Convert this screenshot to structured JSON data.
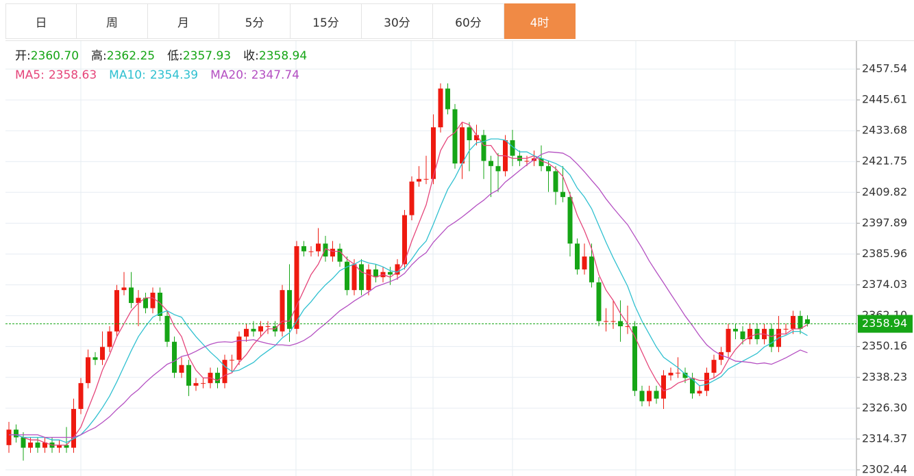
{
  "tabs": [
    "日",
    "周",
    "月",
    "5分",
    "15分",
    "30分",
    "60分",
    "4时"
  ],
  "active_tab": 7,
  "chart_data": {
    "type": "candlestick",
    "ohlc_legend": [
      {
        "label": "开:",
        "text": "2360.70"
      },
      {
        "label": "高:",
        "text": "2362.25"
      },
      {
        "label": "低:",
        "text": "2357.93"
      },
      {
        "label": "收:",
        "text": "2358.94"
      }
    ],
    "up_color": "#ee1a10",
    "down_color": "#16a516",
    "legend_value_color": "#16a516",
    "last_color": "#16a516",
    "ylim": [
      2300.05,
      2468.39
    ],
    "yticks": [
      2457.54,
      2445.61,
      2433.68,
      2421.75,
      2409.82,
      2397.89,
      2385.96,
      2374.03,
      {
        "value": 2362.1,
        "label": "2362.10"
      },
      2350.16,
      2338.23,
      {
        "value": 2326.3,
        "label": "2326.30"
      },
      2314.37,
      2302.44
    ],
    "grid": true,
    "open": [
      2312,
      2318,
      2315,
      2311,
      2313,
      2311,
      2313,
      2311,
      2312,
      2311,
      2326,
      2336,
      2346,
      2345,
      2350,
      2356,
      2372,
      2373,
      2367,
      2369,
      2365,
      2371,
      2362,
      2352,
      2340,
      2343,
      2335,
      2336,
      2336,
      2340,
      2336,
      2345,
      2345,
      2354,
      2357,
      2356,
      2358,
      2358,
      2356,
      2372,
      2357,
      2389,
      2387,
      2387,
      2390,
      2385,
      2388,
      2383,
      2372,
      2382,
      2372,
      2380,
      2377,
      2379,
      2378,
      2382,
      2401,
      2414,
      2415,
      2415,
      2435,
      2450,
      2442,
      2421,
      2435,
      2430,
      2432,
      2422,
      2420,
      2418,
      2430,
      2424,
      2422,
      2422,
      2423,
      2420,
      2418,
      2410,
      2408,
      2390,
      2380,
      2385,
      2375,
      2360,
      2360,
      2360,
      2358,
      2358,
      2333,
      2329,
      2333,
      2330,
      2339,
      2340,
      2340,
      2338,
      2332,
      2333,
      2340,
      2345,
      2348,
      2357,
      2356,
      2353,
      2357,
      2353,
      2357,
      2350,
      2357,
      2357,
      2362,
      2360.7
    ],
    "high": [
      2321,
      2320,
      2317,
      2315,
      2315,
      2315,
      2315,
      2314,
      2319,
      2330,
      2338,
      2349,
      2348,
      2356,
      2358,
      2374,
      2379,
      2379,
      2372,
      2371,
      2373,
      2373,
      2364,
      2354,
      2346,
      2345,
      2338,
      2338,
      2342,
      2342,
      2347,
      2347,
      2356,
      2359,
      2360,
      2360,
      2360,
      2360,
      2374,
      2382,
      2391,
      2391,
      2389,
      2396,
      2393,
      2391,
      2390,
      2385,
      2384,
      2384,
      2382,
      2382,
      2381,
      2381,
      2384,
      2403,
      2416,
      2420,
      2424,
      2440,
      2452,
      2452,
      2444,
      2437,
      2437,
      2436,
      2434,
      2424,
      2425,
      2432,
      2434,
      2426,
      2424,
      2426,
      2428,
      2422,
      2420,
      2420,
      2410,
      2392,
      2390,
      2390,
      2377,
      2365,
      2368,
      2368,
      2366,
      2360,
      2335,
      2335,
      2335,
      2341,
      2342,
      2346,
      2342,
      2340,
      2335,
      2342,
      2347,
      2350,
      2359,
      2359,
      2358,
      2359,
      2359,
      2359,
      2359,
      2362,
      2359,
      2364,
      2364,
      2362.25
    ],
    "low": [
      2309,
      2313,
      2306,
      2309,
      2309,
      2309,
      2309,
      2309,
      2309,
      2309,
      2324,
      2334,
      2343,
      2343,
      2348,
      2354,
      2370,
      2365,
      2358,
      2363,
      2363,
      2360,
      2350,
      2338,
      2338,
      2331,
      2333,
      2334,
      2334,
      2334,
      2334,
      2340,
      2343,
      2352,
      2354,
      2354,
      2355,
      2354,
      2354,
      2352,
      2355,
      2385,
      2385,
      2385,
      2383,
      2383,
      2381,
      2370,
      2370,
      2370,
      2370,
      2375,
      2375,
      2374,
      2376,
      2380,
      2399,
      2412,
      2413,
      2413,
      2433,
      2440,
      2419,
      2415,
      2418,
      2428,
      2415,
      2408,
      2410,
      2416,
      2420,
      2420,
      2420,
      2420,
      2418,
      2410,
      2405,
      2406,
      2385,
      2378,
      2378,
      2373,
      2358,
      2356,
      2357,
      2352,
      2355,
      2331,
      2327,
      2327,
      2328,
      2326,
      2337,
      2338,
      2336,
      2330,
      2331,
      2331,
      2338,
      2343,
      2346,
      2353,
      2351,
      2351,
      2351,
      2351,
      2348,
      2348,
      2355,
      2355,
      2355,
      2357.93
    ],
    "close": [
      2318,
      2315,
      2311,
      2313,
      2311,
      2313,
      2311,
      2312,
      2311,
      2326,
      2336,
      2346,
      2345,
      2350,
      2356,
      2372,
      2373,
      2367,
      2369,
      2365,
      2371,
      2362,
      2352,
      2340,
      2343,
      2335,
      2336,
      2336,
      2340,
      2336,
      2345,
      2345,
      2354,
      2357,
      2356,
      2358,
      2358,
      2356,
      2372,
      2357,
      2389,
      2387,
      2387,
      2390,
      2385,
      2388,
      2383,
      2372,
      2382,
      2372,
      2380,
      2377,
      2379,
      2378,
      2382,
      2401,
      2414,
      2415,
      2415,
      2435,
      2450,
      2442,
      2421,
      2435,
      2430,
      2432,
      2422,
      2420,
      2418,
      2430,
      2424,
      2422,
      2422,
      2423,
      2420,
      2418,
      2410,
      2408,
      2390,
      2380,
      2385,
      2375,
      2360,
      2360,
      2360,
      2358,
      2358,
      2333,
      2329,
      2333,
      2330,
      2339,
      2340,
      2340,
      2338,
      2332,
      2333,
      2340,
      2345,
      2348,
      2357,
      2356,
      2353,
      2357,
      2353,
      2357,
      2350,
      2357,
      2357,
      2362,
      2357,
      2358.94
    ],
    "ma": [
      {
        "label": "MA5:",
        "text": "2358.63",
        "color": "#e5457a",
        "values": [
          2316,
          2316,
          2315,
          2314,
          2314,
          2313,
          2312,
          2312,
          2312,
          2315,
          2319,
          2326,
          2333,
          2341,
          2347,
          2354,
          2359,
          2364,
          2367,
          2369,
          2369,
          2367,
          2364,
          2358,
          2354,
          2346,
          2341,
          2338,
          2338,
          2337,
          2339,
          2340,
          2344,
          2347,
          2351,
          2354,
          2357,
          2357,
          2360,
          2360,
          2366,
          2372,
          2378,
          2382,
          2388,
          2387,
          2387,
          2384,
          2382,
          2379,
          2378,
          2377,
          2378,
          2377,
          2379,
          2383,
          2391,
          2398,
          2405,
          2416,
          2426,
          2431,
          2433,
          2437,
          2436,
          2432,
          2428,
          2428,
          2424,
          2424,
          2423,
          2423,
          2423,
          2424,
          2422,
          2421,
          2419,
          2416,
          2409,
          2401,
          2395,
          2388,
          2378,
          2372,
          2368,
          2363,
          2359,
          2354,
          2348,
          2342,
          2337,
          2333,
          2334,
          2336,
          2337,
          2338,
          2337,
          2337,
          2338,
          2340,
          2345,
          2349,
          2352,
          2354,
          2355,
          2355,
          2354,
          2355,
          2355,
          2357,
          2357,
          2358.63
        ]
      },
      {
        "label": "MA10:",
        "text": "2354.39",
        "color": "#2fc0d0",
        "values": [
          2316,
          2316,
          2315,
          2315,
          2315,
          2315,
          2314,
          2314,
          2313,
          2314.5,
          2316,
          2319,
          2322.5,
          2326.5,
          2331,
          2336.5,
          2342.5,
          2348.5,
          2354,
          2358,
          2361.5,
          2363,
          2364,
          2362.5,
          2361.5,
          2357.5,
          2354,
          2351,
          2348,
          2345.5,
          2342.5,
          2340.5,
          2341,
          2342.5,
          2344,
          2346.5,
          2348.5,
          2350.5,
          2353.5,
          2355.5,
          2360,
          2364.5,
          2367.5,
          2371,
          2374,
          2376.5,
          2379.5,
          2381,
          2382,
          2383.5,
          2382.5,
          2382,
          2381,
          2379.5,
          2379,
          2380.5,
          2384,
          2388,
          2391,
          2397.5,
          2404.5,
          2411,
          2415.5,
          2421,
          2426,
          2429,
          2429.5,
          2430.5,
          2430.5,
          2430,
          2427.5,
          2425.5,
          2425.5,
          2424,
          2423,
          2422,
          2421,
          2419.5,
          2416.5,
          2411.5,
          2408,
          2403.5,
          2397,
          2390.5,
          2384.5,
          2379,
          2373.5,
          2366,
          2360,
          2355,
          2350,
          2346,
          2344,
          2342,
          2339.5,
          2337.5,
          2335,
          2335.5,
          2337,
          2338.5,
          2341.5,
          2343,
          2344.5,
          2346,
          2347.5,
          2350,
          2351.5,
          2353.5,
          2354.5,
          2356,
          2356,
          2354.39
        ]
      },
      {
        "label": "MA20:",
        "text": "2347.74",
        "color": "#b44fc2",
        "values": [
          2316,
          2316,
          2316,
          2316,
          2316,
          2315,
          2315,
          2315,
          2315,
          2315,
          2316,
          2317.5,
          2318.8,
          2320.8,
          2323,
          2325.8,
          2328.3,
          2331.3,
          2333.5,
          2336.3,
          2338.8,
          2341,
          2343.3,
          2344.5,
          2346.3,
          2347,
          2348.3,
          2349.8,
          2351,
          2351.8,
          2352,
          2351.8,
          2352.5,
          2352.5,
          2352.8,
          2352,
          2351.3,
          2350.8,
          2350.8,
          2350.5,
          2351.3,
          2352.5,
          2354.3,
          2356.8,
          2359,
          2361.5,
          2364,
          2365.8,
          2367.8,
          2369.5,
          2371.3,
          2373.3,
          2374.3,
          2375.3,
          2376.5,
          2378.5,
          2381.8,
          2384.5,
          2386.5,
          2390.5,
          2393.5,
          2396.5,
          2398.3,
          2400.3,
          2402.5,
          2404.8,
          2406.8,
          2409.3,
          2410.8,
          2413.8,
          2416,
          2418.3,
          2420.5,
          2422.5,
          2424.5,
          2425.5,
          2425.3,
          2425,
          2423.5,
          2420.8,
          2417.8,
          2414.5,
          2411.3,
          2407.3,
          2403.8,
          2400.5,
          2397.3,
          2392.8,
          2388.3,
          2383.3,
          2379,
          2374.8,
          2370.5,
          2366.3,
          2362,
          2358.3,
          2354.3,
          2350.8,
          2348.5,
          2346.8,
          2345.8,
          2344.5,
          2344.3,
          2344,
          2343.5,
          2343.8,
          2343.3,
          2344.5,
          2345.8,
          2347.3,
          2348.8,
          2347.74
        ]
      }
    ]
  }
}
